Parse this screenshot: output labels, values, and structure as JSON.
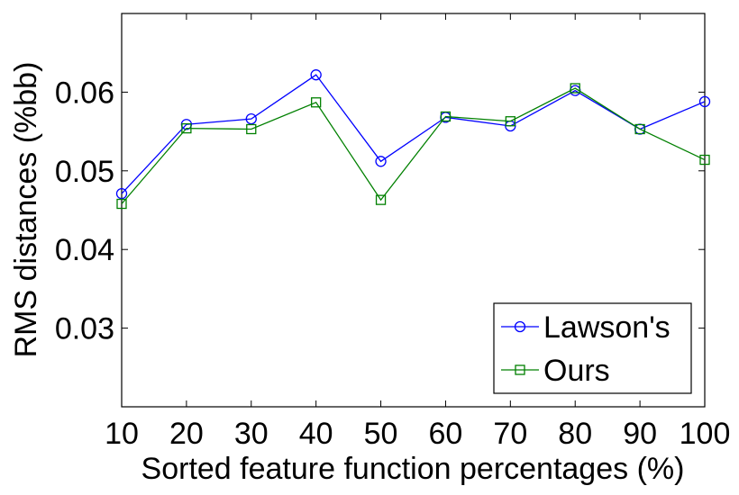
{
  "chart_data": {
    "type": "line",
    "title": "",
    "xlabel": "Sorted feature function percentages (%)",
    "ylabel": "RMS distances (%bb)",
    "x": [
      10,
      20,
      30,
      40,
      50,
      60,
      70,
      80,
      90,
      100
    ],
    "xticks": [
      "10",
      "20",
      "30",
      "40",
      "50",
      "60",
      "70",
      "80",
      "90",
      "100"
    ],
    "yticks": [
      "0.03",
      "0.04",
      "0.05",
      "0.06"
    ],
    "ytick_values": [
      0.03,
      0.04,
      0.05,
      0.06
    ],
    "xlim": [
      10,
      100
    ],
    "ylim": [
      0.02,
      0.07
    ],
    "grid": false,
    "legend_position": "bottom-right",
    "series": [
      {
        "name": "Lawson's",
        "color": "#0000ff",
        "marker": "circle",
        "values": [
          0.0471,
          0.0559,
          0.0566,
          0.0622,
          0.0512,
          0.0568,
          0.0557,
          0.0602,
          0.0553,
          0.0588
        ]
      },
      {
        "name": "Ours",
        "color": "#008000",
        "marker": "square",
        "values": [
          0.0458,
          0.0554,
          0.0553,
          0.0587,
          0.0463,
          0.0569,
          0.0563,
          0.0605,
          0.0553,
          0.0514
        ]
      }
    ]
  }
}
